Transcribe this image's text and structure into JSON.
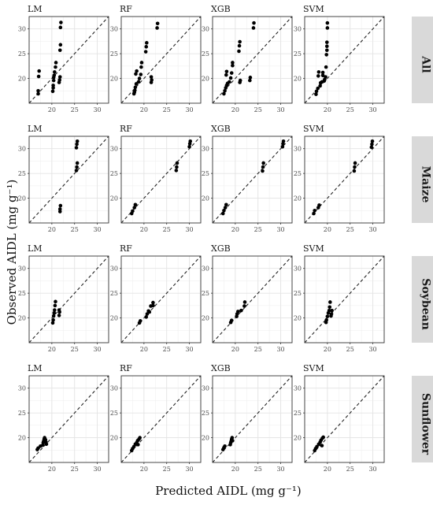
{
  "ylabel": "Observed AIDL (mg g⁻¹)",
  "xlabel": "Predicted AIDL (mg g⁻¹)",
  "chart_data": {
    "type": "scatter",
    "facet_rows": [
      "All",
      "Maize",
      "Soybean",
      "Sunflower"
    ],
    "facet_cols": [
      "LM",
      "RF",
      "XGB",
      "SVM"
    ],
    "xlim": [
      15,
      32.5
    ],
    "ylim": [
      15,
      32.5
    ],
    "ticks": [
      20,
      25,
      30
    ],
    "reference_line": "1:1 dashed",
    "grid": true,
    "panels": {
      "All": {
        "LM": [
          [
            17.0,
            16.9
          ],
          [
            17.0,
            17.5
          ],
          [
            17.1,
            20.4
          ],
          [
            17.2,
            21.5
          ],
          [
            20.2,
            17.4
          ],
          [
            20.3,
            18.1
          ],
          [
            20.3,
            18.6
          ],
          [
            20.4,
            19.6
          ],
          [
            20.4,
            20.2
          ],
          [
            20.5,
            20.6
          ],
          [
            20.6,
            21.3
          ],
          [
            20.8,
            22.3
          ],
          [
            20.9,
            23.2
          ],
          [
            21.6,
            19.2
          ],
          [
            21.7,
            19.7
          ],
          [
            21.8,
            20.3
          ],
          [
            21.8,
            25.7
          ],
          [
            21.9,
            26.8
          ],
          [
            21.9,
            30.3
          ],
          [
            22.0,
            31.3
          ]
        ],
        "RF": [
          [
            17.8,
            16.9
          ],
          [
            18.0,
            17.6
          ],
          [
            18.1,
            18.2
          ],
          [
            18.3,
            18.9
          ],
          [
            18.2,
            20.9
          ],
          [
            18.4,
            21.5
          ],
          [
            18.8,
            19.3
          ],
          [
            19.0,
            20.0
          ],
          [
            19.3,
            20.8
          ],
          [
            19.4,
            22.3
          ],
          [
            19.5,
            23.2
          ],
          [
            20.4,
            25.4
          ],
          [
            20.5,
            26.4
          ],
          [
            20.6,
            27.2
          ],
          [
            21.6,
            19.2
          ],
          [
            21.7,
            19.7
          ],
          [
            21.6,
            20.3
          ],
          [
            22.9,
            30.2
          ],
          [
            23.0,
            31.1
          ],
          [
            17.9,
            17.2
          ]
        ],
        "XGB": [
          [
            17.5,
            16.9
          ],
          [
            17.7,
            17.5
          ],
          [
            17.9,
            18.1
          ],
          [
            18.1,
            18.6
          ],
          [
            18.3,
            19.0
          ],
          [
            18.0,
            20.7
          ],
          [
            18.1,
            21.4
          ],
          [
            18.7,
            19.3
          ],
          [
            19.0,
            20.1
          ],
          [
            19.2,
            21.1
          ],
          [
            19.4,
            22.6
          ],
          [
            19.4,
            23.2
          ],
          [
            20.8,
            25.5
          ],
          [
            20.9,
            26.6
          ],
          [
            21.0,
            27.4
          ],
          [
            21.0,
            19.2
          ],
          [
            21.1,
            19.6
          ],
          [
            23.2,
            19.6
          ],
          [
            23.3,
            20.2
          ],
          [
            24.0,
            30.2
          ],
          [
            24.1,
            31.2
          ]
        ],
        "SVM": [
          [
            17.5,
            16.8
          ],
          [
            17.6,
            17.4
          ],
          [
            17.9,
            18.0
          ],
          [
            18.0,
            20.5
          ],
          [
            18.1,
            21.3
          ],
          [
            18.4,
            18.5
          ],
          [
            18.5,
            19.1
          ],
          [
            18.8,
            19.3
          ],
          [
            19.0,
            20.6
          ],
          [
            19.0,
            21.2
          ],
          [
            19.3,
            19.5
          ],
          [
            19.4,
            19.8
          ],
          [
            19.6,
            20.3
          ],
          [
            19.7,
            22.3
          ],
          [
            19.8,
            24.8
          ],
          [
            19.9,
            25.7
          ],
          [
            19.9,
            26.5
          ],
          [
            19.9,
            27.3
          ],
          [
            20.0,
            30.2
          ],
          [
            20.0,
            31.2
          ]
        ]
      },
      "Maize": {
        "LM": [
          [
            21.8,
            17.3
          ],
          [
            21.8,
            17.8
          ],
          [
            21.9,
            18.5
          ],
          [
            25.4,
            25.6
          ],
          [
            25.5,
            26.3
          ],
          [
            25.6,
            27.1
          ],
          [
            25.4,
            30.2
          ],
          [
            25.5,
            30.9
          ],
          [
            25.6,
            31.5
          ]
        ],
        "RF": [
          [
            17.3,
            16.9
          ],
          [
            17.5,
            17.4
          ],
          [
            17.9,
            18.1
          ],
          [
            18.1,
            18.7
          ],
          [
            27.1,
            25.6
          ],
          [
            27.2,
            26.3
          ],
          [
            27.3,
            27.1
          ],
          [
            30.0,
            30.4
          ],
          [
            30.1,
            31.0
          ],
          [
            30.2,
            31.5
          ]
        ],
        "XGB": [
          [
            17.3,
            16.9
          ],
          [
            17.5,
            17.5
          ],
          [
            17.8,
            18.1
          ],
          [
            18.0,
            18.7
          ],
          [
            26.0,
            25.5
          ],
          [
            26.1,
            26.3
          ],
          [
            26.2,
            27.1
          ],
          [
            30.4,
            30.4
          ],
          [
            30.5,
            31.0
          ],
          [
            30.6,
            31.5
          ]
        ],
        "SVM": [
          [
            17.0,
            16.9
          ],
          [
            17.2,
            17.5
          ],
          [
            18.0,
            18.1
          ],
          [
            18.2,
            18.6
          ],
          [
            25.9,
            25.5
          ],
          [
            26.0,
            26.3
          ],
          [
            26.1,
            27.1
          ],
          [
            29.7,
            30.3
          ],
          [
            29.8,
            30.9
          ],
          [
            29.9,
            31.5
          ]
        ]
      },
      "Soybean": {
        "LM": [
          [
            20.2,
            19.0
          ],
          [
            20.3,
            19.6
          ],
          [
            20.4,
            20.4
          ],
          [
            20.5,
            21.0
          ],
          [
            20.6,
            21.6
          ],
          [
            20.7,
            22.5
          ],
          [
            20.8,
            23.3
          ],
          [
            21.6,
            20.5
          ],
          [
            21.7,
            21.2
          ],
          [
            21.6,
            21.6
          ]
        ],
        "RF": [
          [
            19.0,
            19.0
          ],
          [
            19.2,
            19.4
          ],
          [
            20.5,
            20.2
          ],
          [
            20.7,
            20.8
          ],
          [
            21.0,
            21.4
          ],
          [
            21.2,
            21.2
          ],
          [
            21.5,
            22.4
          ],
          [
            22.0,
            22.5
          ],
          [
            22.0,
            23.1
          ]
        ],
        "XGB": [
          [
            19.0,
            19.1
          ],
          [
            19.2,
            19.5
          ],
          [
            20.3,
            20.3
          ],
          [
            20.4,
            20.8
          ],
          [
            20.6,
            21.3
          ],
          [
            21.3,
            21.5
          ],
          [
            22.0,
            22.4
          ],
          [
            22.1,
            23.2
          ]
        ],
        "SVM": [
          [
            19.7,
            19.1
          ],
          [
            19.8,
            19.6
          ],
          [
            20.0,
            20.3
          ],
          [
            20.2,
            21.0
          ],
          [
            20.4,
            21.5
          ],
          [
            20.5,
            22.2
          ],
          [
            20.6,
            23.2
          ],
          [
            20.8,
            20.4
          ],
          [
            20.9,
            20.8
          ],
          [
            21.0,
            21.5
          ]
        ]
      },
      "Sunflower": {
        "LM": [
          [
            16.8,
            17.6
          ],
          [
            17.0,
            17.9
          ],
          [
            17.5,
            18.3
          ],
          [
            18.0,
            18.5
          ],
          [
            18.1,
            19.0
          ],
          [
            18.2,
            19.3
          ],
          [
            18.3,
            19.7
          ],
          [
            18.4,
            20.0
          ],
          [
            18.6,
            19.6
          ],
          [
            18.7,
            19.1
          ],
          [
            18.8,
            18.7
          ]
        ],
        "RF": [
          [
            17.3,
            17.4
          ],
          [
            17.5,
            17.8
          ],
          [
            17.8,
            18.2
          ],
          [
            18.1,
            18.7
          ],
          [
            18.4,
            19.0
          ],
          [
            18.6,
            19.4
          ],
          [
            18.9,
            19.7
          ],
          [
            19.1,
            20.0
          ],
          [
            18.7,
            18.6
          ]
        ],
        "XGB": [
          [
            17.3,
            17.6
          ],
          [
            17.5,
            18.0
          ],
          [
            17.7,
            18.3
          ],
          [
            18.9,
            18.6
          ],
          [
            19.0,
            19.0
          ],
          [
            19.1,
            19.3
          ],
          [
            19.2,
            19.7
          ],
          [
            19.3,
            20.0
          ],
          [
            19.4,
            19.4
          ]
        ],
        "SVM": [
          [
            17.2,
            17.4
          ],
          [
            17.4,
            17.8
          ],
          [
            17.7,
            18.2
          ],
          [
            18.1,
            18.7
          ],
          [
            18.4,
            19.1
          ],
          [
            18.6,
            19.5
          ],
          [
            18.9,
            19.9
          ],
          [
            19.1,
            20.1
          ],
          [
            18.8,
            18.4
          ]
        ]
      }
    }
  }
}
